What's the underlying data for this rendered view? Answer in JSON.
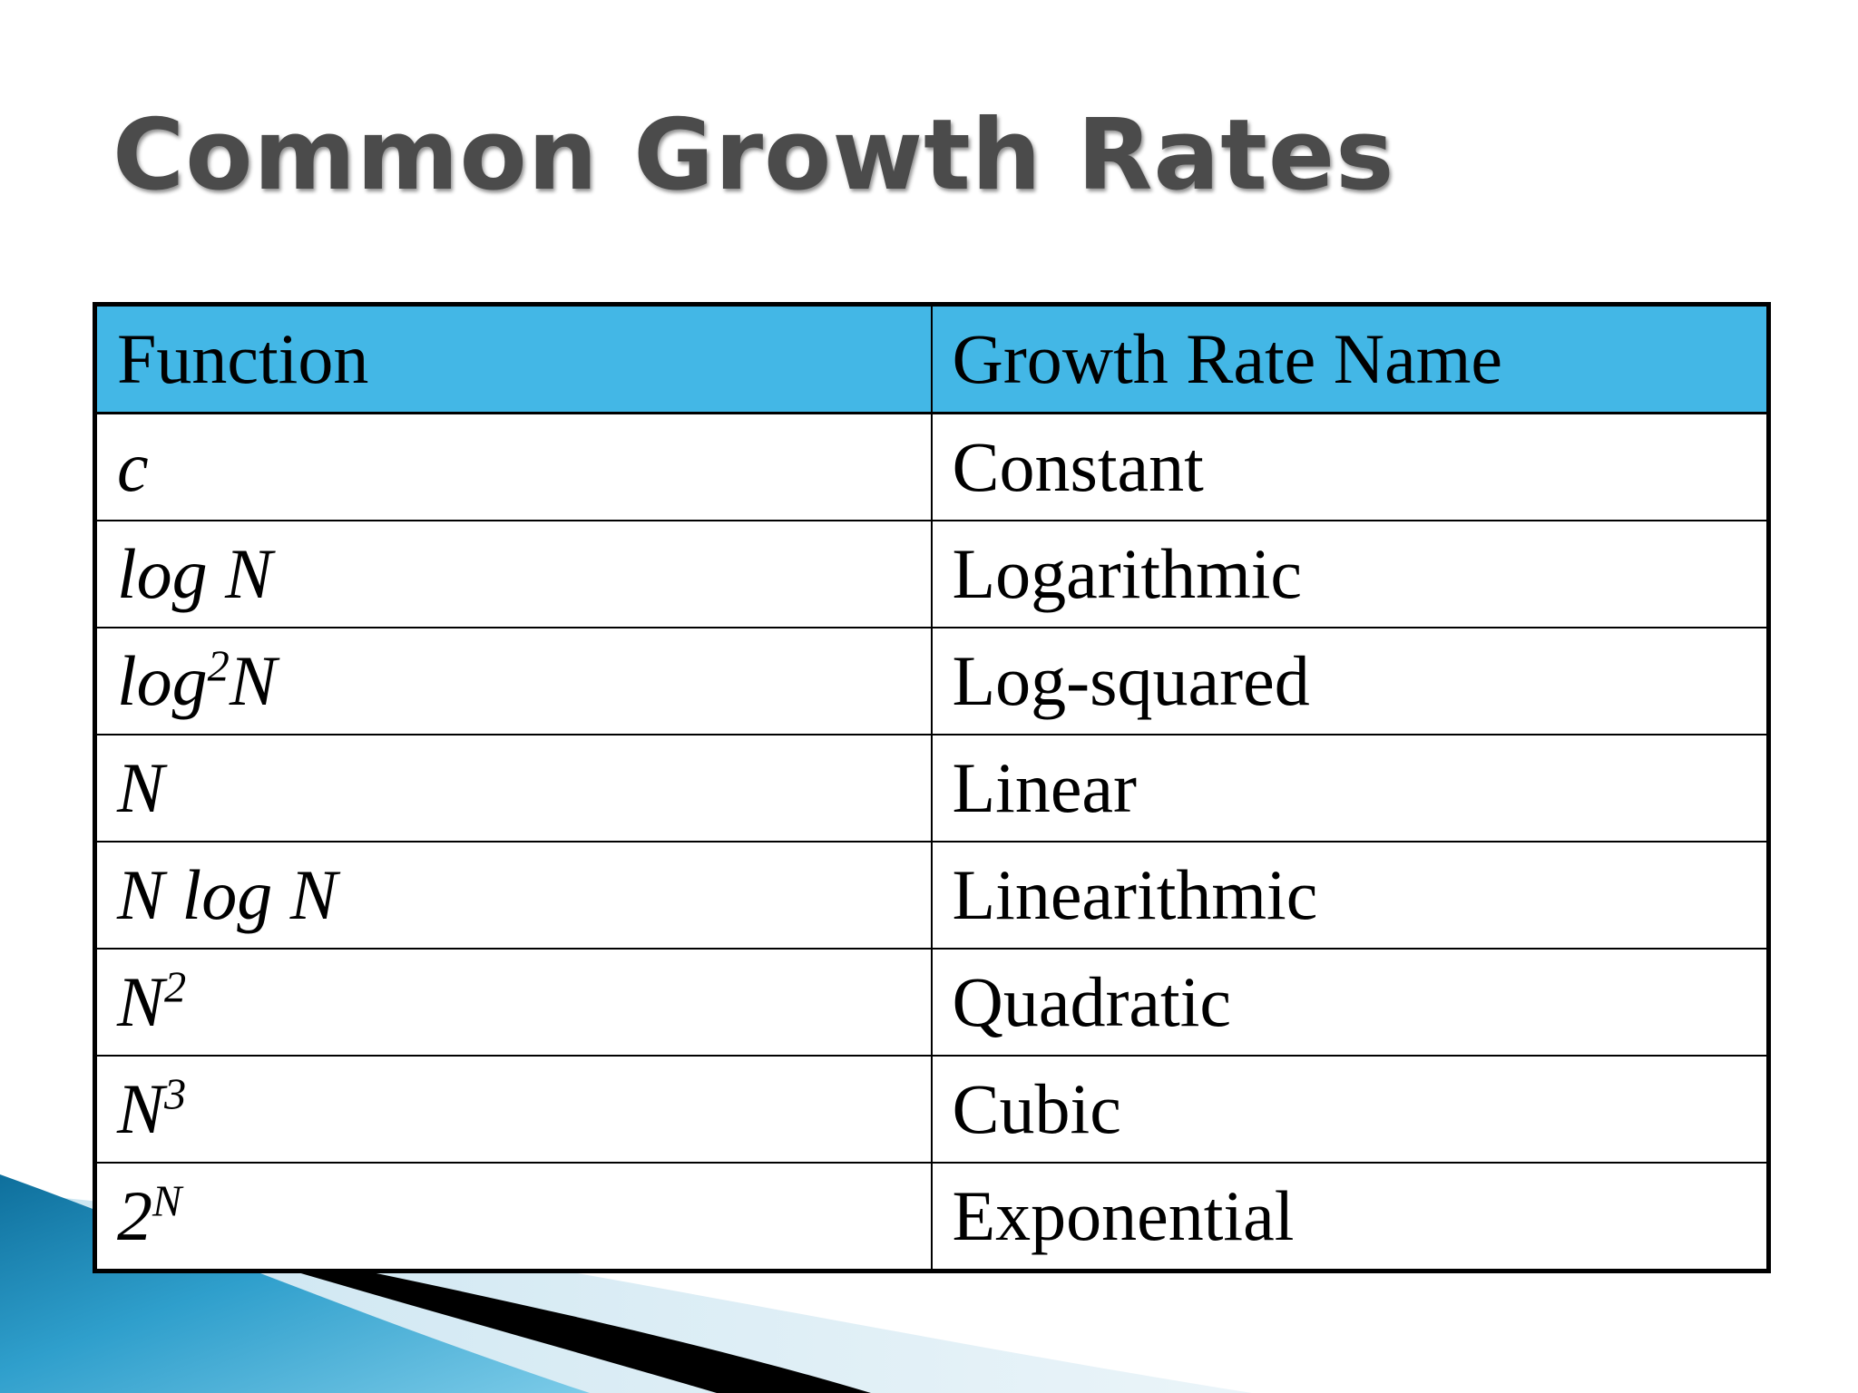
{
  "title": "Common Growth Rates",
  "table": {
    "headers": [
      "Function",
      "Growth Rate Name"
    ],
    "rows": [
      {
        "function": {
          "base": "c",
          "sup": "",
          "tail": ""
        },
        "name": "Constant"
      },
      {
        "function": {
          "base": "log N",
          "sup": "",
          "tail": ""
        },
        "name": "Logarithmic"
      },
      {
        "function": {
          "base": "log",
          "sup": "2",
          "tail": "N"
        },
        "name": "Log-squared"
      },
      {
        "function": {
          "base": "N",
          "sup": "",
          "tail": ""
        },
        "name": "Linear"
      },
      {
        "function": {
          "base": "N log N",
          "sup": "",
          "tail": ""
        },
        "name": "Linearithmic"
      },
      {
        "function": {
          "base": "N",
          "sup": "2",
          "tail": ""
        },
        "name": "Quadratic"
      },
      {
        "function": {
          "base": "N",
          "sup": "3",
          "tail": ""
        },
        "name": "Cubic"
      },
      {
        "function": {
          "base": "2",
          "sup": "N",
          "tail": ""
        },
        "name": "Exponential"
      }
    ]
  },
  "colors": {
    "header_background": "#43b7e6",
    "title_text": "#4b4b4b",
    "accent_blue": "#1f86b5",
    "border": "#000000"
  }
}
